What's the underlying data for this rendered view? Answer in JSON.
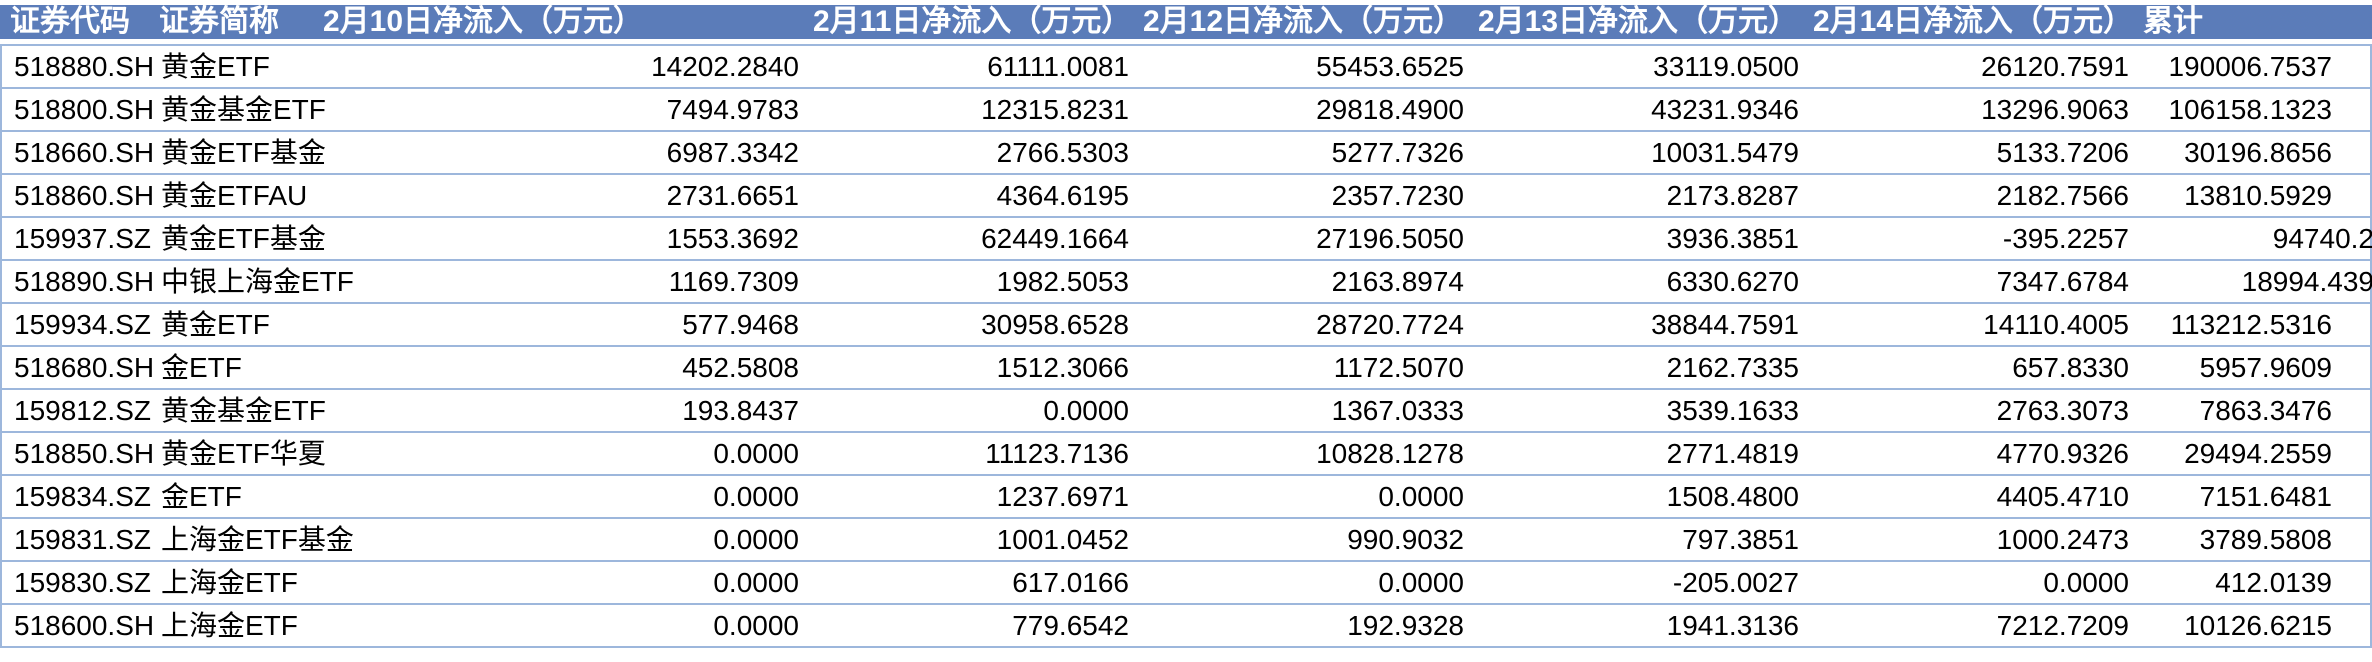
{
  "colors": {
    "header_bg": "#5B7CB9",
    "header_text": "#FFFFFF",
    "grid": "#9DB7DC",
    "text": "#000000",
    "row_bg": "#FFFFFF"
  },
  "chart_data": {
    "type": "table",
    "title": "",
    "columns": [
      "证券代码",
      "证券简称",
      "2月10日净流入（万元）",
      "2月11日净流入（万元）",
      "2月12日净流入（万元）",
      "2月13日净流入（万元）",
      "2月14日净流入（万元）",
      "累计"
    ],
    "rows": [
      [
        "518880.SH",
        "黄金ETF",
        "14202.2840",
        "61111.0081",
        "55453.6525",
        "33119.0500",
        "26120.7591",
        "190006.7537"
      ],
      [
        "518800.SH",
        "黄金基金ETF",
        "7494.9783",
        "12315.8231",
        "29818.4900",
        "43231.9346",
        "13296.9063",
        "106158.1323"
      ],
      [
        "518660.SH",
        "黄金ETF基金",
        "6987.3342",
        "2766.5303",
        "5277.7326",
        "10031.5479",
        "5133.7206",
        "30196.8656"
      ],
      [
        "518860.SH",
        "黄金ETFAU",
        "2731.6651",
        "4364.6195",
        "2357.7230",
        "2173.8287",
        "2182.7566",
        "13810.5929"
      ],
      [
        "159937.SZ",
        "黄金ETF基金",
        "1553.3692",
        "62449.1664",
        "27196.5050",
        "3936.3851",
        "-395.2257",
        "94740.2"
      ],
      [
        "518890.SH",
        "中银上海金ETF",
        "1169.7309",
        "1982.5053",
        "2163.8974",
        "6330.6270",
        "7347.6784",
        "18994.439"
      ],
      [
        "159934.SZ",
        "黄金ETF",
        "577.9468",
        "30958.6528",
        "28720.7724",
        "38844.7591",
        "14110.4005",
        "113212.5316"
      ],
      [
        "518680.SH",
        "金ETF",
        "452.5808",
        "1512.3066",
        "1172.5070",
        "2162.7335",
        "657.8330",
        "5957.9609"
      ],
      [
        "159812.SZ",
        "黄金基金ETF",
        "193.8437",
        "0.0000",
        "1367.0333",
        "3539.1633",
        "2763.3073",
        "7863.3476"
      ],
      [
        "518850.SH",
        "黄金ETF华夏",
        "0.0000",
        "11123.7136",
        "10828.1278",
        "2771.4819",
        "4770.9326",
        "29494.2559"
      ],
      [
        "159834.SZ",
        "金ETF",
        "0.0000",
        "1237.6971",
        "0.0000",
        "1508.4800",
        "4405.4710",
        "7151.6481"
      ],
      [
        "159831.SZ",
        "上海金ETF基金",
        "0.0000",
        "1001.0452",
        "990.9032",
        "797.3851",
        "1000.2473",
        "3789.5808"
      ],
      [
        "159830.SZ",
        "上海金ETF",
        "0.0000",
        "617.0166",
        "0.0000",
        "-205.0027",
        "0.0000",
        "412.0139"
      ],
      [
        "518600.SH",
        "上海金ETF",
        "0.0000",
        "779.6542",
        "192.9328",
        "1941.3136",
        "7212.7209",
        "10126.6215"
      ]
    ]
  }
}
